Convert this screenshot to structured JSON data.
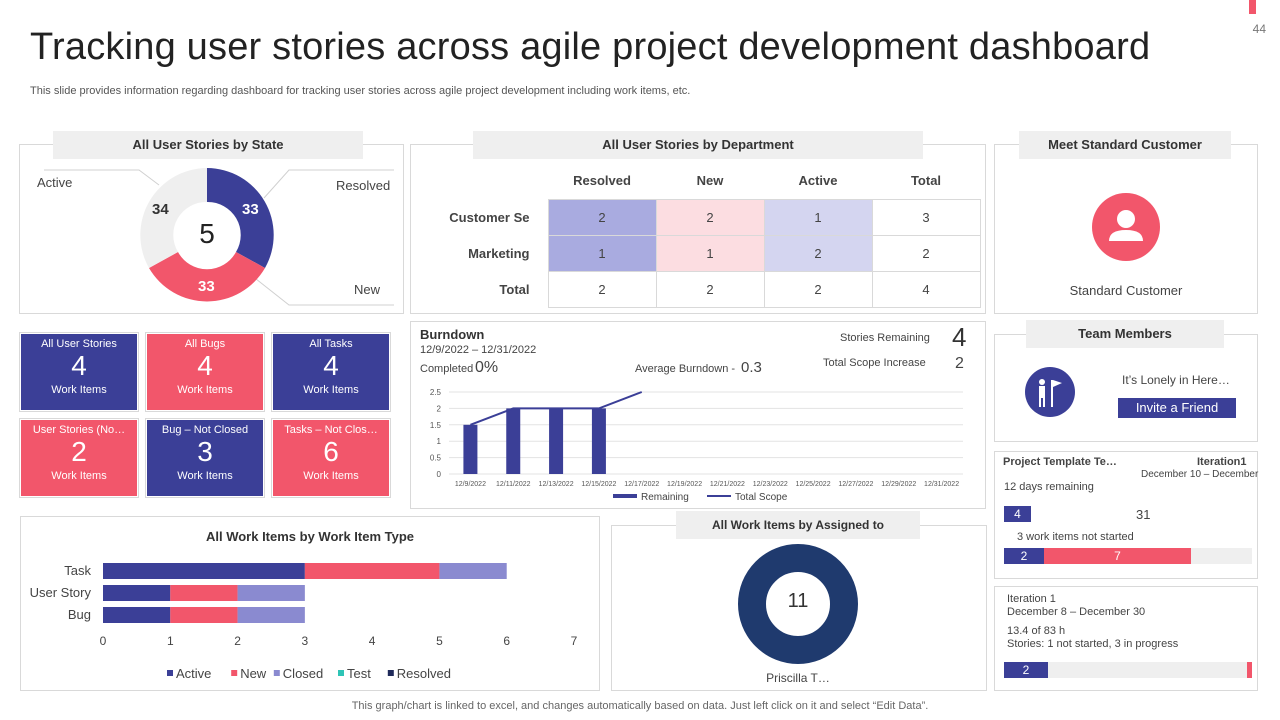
{
  "page": {
    "title": "Tracking user stories across agile project development dashboard",
    "subtitle": "This slide provides information regarding dashboard for tracking user stories across agile project development including work items, etc.",
    "page_number": "44",
    "footer": "This graph/chart is linked to excel, and changes automatically based on data. Just left click on it and select “Edit Data”."
  },
  "colors": {
    "blue": "#3b3f97",
    "red": "#f2566b",
    "lavender": "#8a8ad0",
    "light_gray": "#efefef",
    "navy": "#1f3a6e"
  },
  "by_state": {
    "header": "All User Stories by State",
    "total": "5",
    "labels": {
      "active": "Active",
      "resolved": "Resolved",
      "new": "New"
    },
    "values": {
      "active": "34",
      "resolved": "33",
      "new": "33"
    }
  },
  "by_department": {
    "header": "All User Stories by Department",
    "columns": [
      "Resolved",
      "New",
      "Active",
      "Total"
    ],
    "rows": [
      {
        "name": "Customer Se",
        "cells": [
          "2",
          "2",
          "1",
          "3"
        ]
      },
      {
        "name": "Marketing",
        "cells": [
          "1",
          "1",
          "2",
          "2"
        ]
      },
      {
        "name": "Total",
        "cells": [
          "2",
          "2",
          "2",
          "4"
        ]
      }
    ]
  },
  "standard_customer": {
    "header": "Meet Standard Customer",
    "name": "Standard Customer",
    "icon": "user-icon"
  },
  "tiles": [
    {
      "title": "All User Stories",
      "value": "4",
      "sub": "Work Items",
      "color": "blue"
    },
    {
      "title": "All Bugs",
      "value": "4",
      "sub": "Work Items",
      "color": "red"
    },
    {
      "title": "All Tasks",
      "value": "4",
      "sub": "Work Items",
      "color": "blue"
    },
    {
      "title": "User Stories (No…",
      "value": "2",
      "sub": "Work Items",
      "color": "red"
    },
    {
      "title": "Bug – Not Closed",
      "value": "3",
      "sub": "Work Items",
      "color": "blue"
    },
    {
      "title": "Tasks – Not Clos…",
      "value": "6",
      "sub": "Work Items",
      "color": "red"
    }
  ],
  "burndown": {
    "title": "Burndown",
    "date_range": "12/9/2022 – 12/31/2022",
    "completed_label": "Completed",
    "completed_value": "0%",
    "avg_label": "Average Burndown -",
    "avg_value": "0.3",
    "stories_remaining_label": "Stories Remaining",
    "stories_remaining_value": "4",
    "scope_increase_label": "Total Scope Increase",
    "scope_increase_value": "2",
    "legend_remaining": "Remaining",
    "legend_total_scope": "Total Scope"
  },
  "team": {
    "header": "Team Members",
    "message": "It’s Lonely in Here…",
    "invite_label": "Invite a Friend",
    "icon": "team-flag-icon"
  },
  "iteration_card_1": {
    "name": "Project Template Te…",
    "iteration": "Iteration1",
    "dates": "December 10 – December",
    "days_remaining": "12 days remaining",
    "badge": "4",
    "count": "31",
    "not_started": "3 work items not started",
    "progress_a": "2",
    "progress_b": "7"
  },
  "iteration_card_2": {
    "name": "Iteration 1",
    "dates": "December 8 – December 30",
    "hours": "13.4 of 83 h",
    "stories": "Stories: 1 not started, 3 in progress",
    "badge": "2"
  },
  "assigned": {
    "header": "All Work Items by Assigned to",
    "value": "11",
    "person": "Priscilla T…"
  },
  "chart_data": [
    {
      "type": "line",
      "title": "Burndown",
      "x": [
        "12/9/2022",
        "12/11/2022",
        "12/13/2022",
        "12/15/2022",
        "12/17/2022",
        "12/19/2022",
        "12/21/2022",
        "12/23/2022",
        "12/25/2022",
        "12/27/2022",
        "12/29/2022",
        "12/31/2022"
      ],
      "ylim": [
        0,
        2.5
      ],
      "yticks": [
        "0",
        "0.5",
        "1",
        "1.5",
        "2",
        "2.5"
      ],
      "series": [
        {
          "name": "Remaining",
          "type": "bar",
          "values": [
            1.5,
            2,
            2,
            2,
            null,
            null,
            null,
            null,
            null,
            null,
            null,
            null
          ]
        },
        {
          "name": "Total Scope",
          "type": "line",
          "values": [
            1.5,
            2,
            2,
            2,
            2.5,
            null,
            null,
            null,
            null,
            null,
            null,
            null
          ]
        }
      ],
      "grid": true,
      "legend": "bottom"
    },
    {
      "type": "bar",
      "orientation": "horizontal",
      "stacked": true,
      "title": "All Work Items by Work Item Type",
      "categories": [
        "Task",
        "User Story",
        "Bug"
      ],
      "xticks": [
        "0",
        "1",
        "2",
        "3",
        "4",
        "5",
        "6",
        "7"
      ],
      "xlim": [
        0,
        7
      ],
      "series": [
        {
          "name": "Active",
          "color": "#3b3f97",
          "values": [
            3,
            1,
            1
          ]
        },
        {
          "name": "New",
          "color": "#f2566b",
          "values": [
            2,
            1,
            1
          ]
        },
        {
          "name": "Closed",
          "color": "#8a8ad0",
          "values": [
            1,
            1,
            1
          ]
        },
        {
          "name": "Test",
          "color": "#2ec4b6",
          "values": [
            0,
            0,
            0
          ]
        },
        {
          "name": "Resolved",
          "color": "#1f2a5a",
          "values": [
            0,
            0,
            0
          ]
        }
      ],
      "legend": "bottom"
    }
  ]
}
